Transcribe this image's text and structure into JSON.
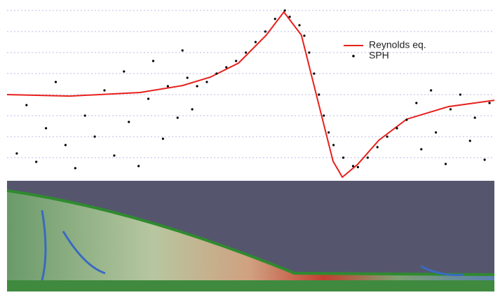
{
  "chart_data": {
    "type": "line",
    "ylim": [
      0,
      8.5
    ],
    "yticks": [
      1,
      2,
      3,
      4,
      5,
      6,
      7,
      8
    ],
    "xlim": [
      0,
      100
    ],
    "grid": true,
    "legend": "upper right",
    "series": [
      {
        "name": "Reynolds eq.",
        "type": "line",
        "color": "#e8201c",
        "x": [
          0,
          12.9,
          27.3,
          36,
          41.7,
          47.5,
          53.2,
          56.8,
          60.4,
          64,
          66.9,
          68.8,
          71.9,
          76.3,
          82,
          90.6,
          100
        ],
        "values": [
          4.0,
          3.93,
          4.1,
          4.43,
          4.83,
          5.5,
          6.83,
          7.93,
          6.83,
          3.5,
          0.83,
          0.07,
          0.67,
          1.83,
          2.83,
          3.43,
          3.73
        ]
      },
      {
        "name": "SPH",
        "type": "scatter",
        "color": "#000000",
        "x": [
          2,
          4,
          6,
          8,
          10,
          12,
          14,
          16,
          18,
          20,
          22,
          24,
          25,
          27,
          29,
          30,
          32,
          33,
          35,
          36,
          37,
          38,
          39,
          41,
          43,
          45,
          47,
          49,
          51,
          53,
          55,
          57,
          58,
          60,
          61,
          62,
          63,
          64,
          65,
          66,
          67,
          69,
          71,
          72,
          74,
          76,
          78,
          80,
          82,
          84,
          85,
          87,
          88,
          90,
          91,
          93,
          95,
          96,
          98,
          99
        ],
        "values": [
          1.2,
          3.5,
          0.8,
          2.4,
          4.6,
          1.6,
          0.5,
          3.0,
          2.0,
          4.2,
          1.1,
          5.1,
          2.7,
          0.6,
          3.8,
          5.6,
          1.9,
          4.4,
          2.9,
          6.1,
          4.8,
          3.3,
          4.4,
          4.6,
          5.0,
          5.3,
          5.6,
          6.0,
          6.5,
          7.0,
          7.6,
          8.0,
          7.7,
          7.3,
          6.8,
          6.0,
          5.0,
          4.0,
          3.0,
          2.2,
          1.6,
          1.0,
          0.6,
          0.55,
          1.0,
          1.5,
          2.0,
          2.4,
          2.8,
          3.6,
          1.4,
          4.2,
          2.2,
          0.7,
          3.3,
          4.0,
          1.8,
          2.9,
          0.9,
          3.6
        ]
      }
    ]
  }
}
